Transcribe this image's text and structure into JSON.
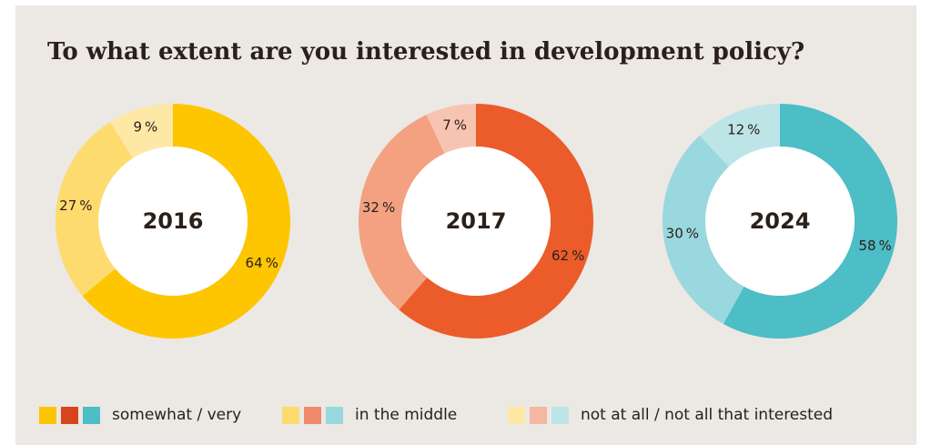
{
  "chart_data": {
    "type": "pie",
    "variant": "donut",
    "title": "To what extent are you interested in development policy?",
    "categories": [
      "somewhat / very",
      "in the middle",
      "not at all / not all that interested"
    ],
    "unit": "%",
    "series": [
      {
        "name": "2016",
        "values": [
          64,
          27,
          9
        ],
        "labels": [
          "64",
          "27",
          "9"
        ],
        "colors": [
          "#fdc600",
          "#fedb6e",
          "#fde8a6"
        ]
      },
      {
        "name": "2017",
        "values": [
          62,
          32,
          7
        ],
        "labels": [
          "62",
          "32",
          "7"
        ],
        "colors": [
          "#eb5c2a",
          "#f3a181",
          "#f7c4b1"
        ]
      },
      {
        "name": "2024",
        "values": [
          58,
          30,
          12
        ],
        "labels": [
          "58",
          "30",
          "12"
        ],
        "colors": [
          "#4dbdc6",
          "#98d8de",
          "#bde5e8"
        ]
      }
    ],
    "legend": {
      "position": "bottom",
      "items": [
        {
          "label": "somewhat / very",
          "colors": [
            "#fdc600",
            "#d8441b",
            "#4dbdc6"
          ]
        },
        {
          "label": "in the middle",
          "colors": [
            "#fedb6e",
            "#ef8a6b",
            "#98d8de"
          ]
        },
        {
          "label": "not at all / not all that interested",
          "colors": [
            "#fde8a6",
            "#f5b7a3",
            "#bde5e8"
          ]
        }
      ]
    }
  }
}
